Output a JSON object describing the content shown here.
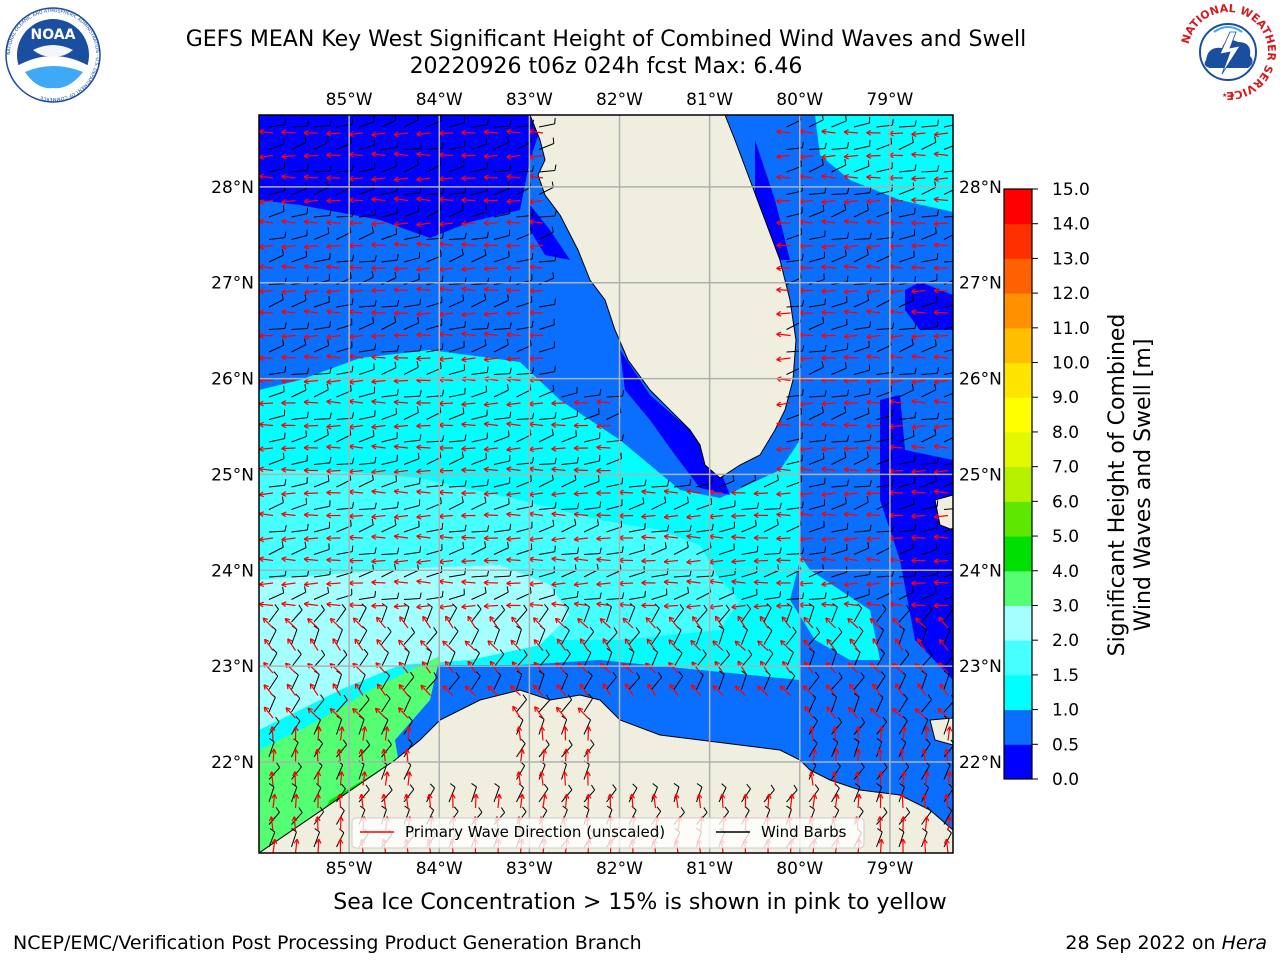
{
  "title": {
    "line1": "GEFS MEAN Key West Significant Height of Combined Wind Waves and Swell",
    "line2": "20220926 t06z 024h fcst   Max: 6.46"
  },
  "logos": {
    "noaa": {
      "text": "NOAA",
      "ring_text": "NATIONAL OCEANIC AND ATMOSPHERIC ADMINISTRATION · U.S. DEPARTMENT OF COMMERCE",
      "color": "#1a4ea0"
    },
    "nws": {
      "ring_text": "NATIONAL WEATHER SERVICE",
      "color": "#d7191c"
    }
  },
  "axes": {
    "lon_labels": [
      "85°W",
      "84°W",
      "83°W",
      "82°W",
      "81°W",
      "80°W",
      "79°W"
    ],
    "lon_values": [
      -85,
      -84,
      -83,
      -82,
      -81,
      -80,
      -79
    ],
    "lat_labels": [
      "28°N",
      "27°N",
      "26°N",
      "25°N",
      "24°N",
      "23°N",
      "22°N"
    ],
    "lat_values": [
      28,
      27,
      26,
      25,
      24,
      23,
      22
    ],
    "lon_range": [
      -86,
      -78.3
    ],
    "lat_range": [
      21.05,
      28.75
    ]
  },
  "legend": {
    "wave_label": "Primary Wave Direction (unscaled)",
    "barb_label": "Wind Barbs",
    "wave_color": "#ff0000",
    "barb_color": "#000000"
  },
  "colorbar": {
    "label_line1": "Significant Height of Combined",
    "label_line2": "Wind Waves and Swell [m]",
    "ticks": [
      "0.0",
      "0.5",
      "1.0",
      "1.5",
      "2.0",
      "3.0",
      "4.0",
      "5.0",
      "6.0",
      "7.0",
      "8.0",
      "9.0",
      "10.0",
      "11.0",
      "12.0",
      "13.0",
      "14.0",
      "15.0"
    ],
    "colors": [
      "#0000ff",
      "#0a6fff",
      "#00ffff",
      "#46ffff",
      "#a4ffff",
      "#54ff74",
      "#00e000",
      "#5ee800",
      "#b4f000",
      "#e2f800",
      "#ffff00",
      "#ffe400",
      "#ffbe00",
      "#ff9000",
      "#ff6000",
      "#ff3000",
      "#ff0000"
    ]
  },
  "map_colors": {
    "land": "#efeedf",
    "grid": "#b0b0b0",
    "coast": "#000000"
  },
  "footer": {
    "sea_ice": "Sea Ice Concentration > 15% is shown in pink to yellow",
    "credit_left": "NCEP/EMC/Verification Post Processing Product Generation Branch",
    "credit_date": "28 Sep 2022 on",
    "credit_host": "Hera"
  }
}
